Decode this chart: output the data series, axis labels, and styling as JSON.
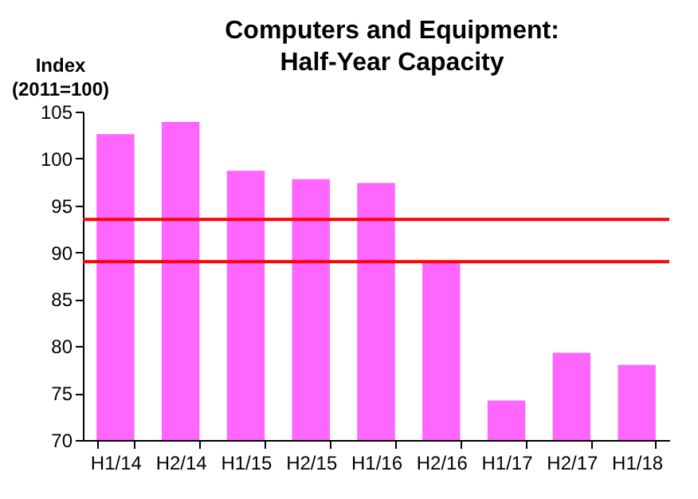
{
  "chart_data": {
    "type": "bar",
    "title": "Computers and Equipment:\nHalf-Year Capacity",
    "ylabel": "Index\n(2011=100)",
    "categories": [
      "H1/14",
      "H2/14",
      "H1/15",
      "H2/15",
      "H1/16",
      "H2/16",
      "H1/17",
      "H2/17",
      "H1/18"
    ],
    "values": [
      102.6,
      103.9,
      98.7,
      97.8,
      97.4,
      88.9,
      74.2,
      79.3,
      78.0
    ],
    "color": "#ff66ff",
    "ylim": [
      70,
      105
    ],
    "yticks": [
      70,
      75,
      80,
      85,
      90,
      95,
      100,
      105
    ],
    "grid": false,
    "ref_lines": [
      {
        "axis": "y",
        "value": 93.5,
        "color": "#ff0000"
      },
      {
        "axis": "y",
        "value": 89.0,
        "color": "#ff0000"
      }
    ]
  }
}
